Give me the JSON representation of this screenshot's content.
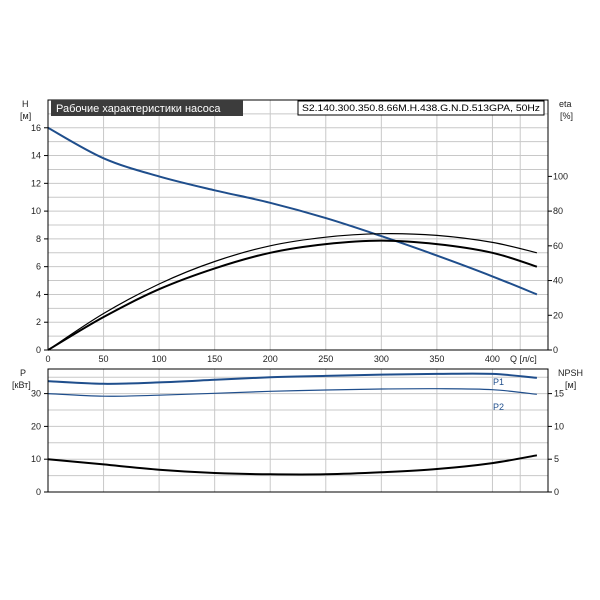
{
  "chart_data": [
    {
      "type": "line",
      "title": "Рабочие характеристики насоса",
      "subtitle": "S2.140.300.350.8.66M.H.438.G.N.D.513GPA, 50Hz",
      "xlabel": "Q [л/с]",
      "ylabel_left": "H",
      "ylabel_left_unit": "[м]",
      "ylabel_right": "eta",
      "ylabel_right_unit": "[%]",
      "xlim": [
        0,
        450
      ],
      "ylim_left": [
        0,
        18
      ],
      "ylim_right": [
        0,
        144
      ],
      "x_ticks": [
        "0",
        "50",
        "100",
        "150",
        "200",
        "250",
        "300",
        "350",
        "400"
      ],
      "y_ticks_left": [
        "0",
        "2",
        "4",
        "6",
        "8",
        "10",
        "12",
        "14",
        "16"
      ],
      "y_ticks_right": [
        "0",
        "20",
        "40",
        "60",
        "80",
        "100"
      ],
      "grid": true,
      "series": [
        {
          "axis": "left",
          "color": "#1f4e8c",
          "x": [
            0,
            50,
            100,
            150,
            200,
            250,
            300,
            350,
            400,
            440
          ],
          "values": [
            16.0,
            13.8,
            12.5,
            11.5,
            10.6,
            9.5,
            8.2,
            6.8,
            5.3,
            4.0
          ]
        },
        {
          "axis": "right",
          "color": "#000000",
          "x": [
            0,
            50,
            100,
            150,
            200,
            250,
            300,
            350,
            400,
            440
          ],
          "values": [
            0,
            19,
            35,
            47,
            56,
            61,
            63,
            61,
            56,
            48
          ]
        },
        {
          "axis": "right",
          "color": "#000000",
          "x": [
            0,
            50,
            100,
            150,
            200,
            250,
            300,
            350,
            400,
            440
          ],
          "values": [
            0,
            21,
            38,
            51,
            60,
            65,
            67,
            66,
            62,
            56
          ]
        }
      ]
    },
    {
      "type": "line",
      "xlabel": "",
      "ylabel_left": "P",
      "ylabel_left_unit": "[кВт]",
      "ylabel_right": "NPSH",
      "ylabel_right_unit": "[м]",
      "xlim": [
        0,
        450
      ],
      "ylim_left": [
        0,
        37.5
      ],
      "ylim_right": [
        0,
        18.75
      ],
      "y_ticks_left": [
        "0",
        "10",
        "20",
        "30"
      ],
      "y_ticks_right": [
        "0",
        "5",
        "10",
        "15"
      ],
      "grid": true,
      "series": [
        {
          "name": "P1",
          "axis": "left",
          "color": "#1f4e8c",
          "x": [
            0,
            50,
            100,
            150,
            200,
            250,
            300,
            350,
            400,
            440
          ],
          "values": [
            33.8,
            33.0,
            33.4,
            34.2,
            35.0,
            35.4,
            35.8,
            36.0,
            36.0,
            34.8
          ]
        },
        {
          "name": "P2",
          "axis": "left",
          "color": "#1f4e8c",
          "x": [
            0,
            50,
            100,
            150,
            200,
            250,
            300,
            350,
            400,
            440
          ],
          "values": [
            30.0,
            29.2,
            29.5,
            30.1,
            30.7,
            31.1,
            31.4,
            31.5,
            31.2,
            29.8
          ]
        },
        {
          "axis": "right",
          "color": "#000000",
          "x": [
            0,
            50,
            100,
            150,
            200,
            250,
            300,
            350,
            400,
            440
          ],
          "values": [
            5.0,
            4.2,
            3.4,
            2.9,
            2.7,
            2.7,
            3.0,
            3.5,
            4.4,
            5.6
          ]
        }
      ]
    }
  ]
}
